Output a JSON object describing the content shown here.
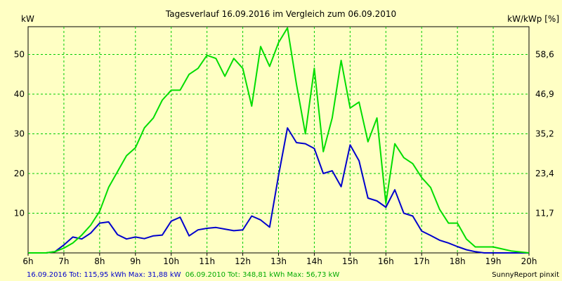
{
  "chart_data": {
    "type": "line",
    "title": "Tagesverlauf 16.09.2016 im Vergleich zum 06.09.2010",
    "ylabel_left": "kW",
    "ylabel_right": "kW/kWp [%]",
    "xlim": [
      6,
      20
    ],
    "ylim": [
      0,
      57
    ],
    "x_tick_labels": [
      "6h",
      "7h",
      "8h",
      "9h",
      "10h",
      "11h",
      "12h",
      "13h",
      "14h",
      "15h",
      "16h",
      "17h",
      "18h",
      "19h",
      "20h"
    ],
    "y_tick_labels_left": [
      "10",
      "20",
      "30",
      "40",
      "50"
    ],
    "y_tick_labels_right": [
      "11,7",
      "23,4",
      "35,2",
      "46,9",
      "58,6"
    ],
    "grid": true,
    "series": [
      {
        "name": "16.09.2016",
        "color": "#0000cc",
        "x": [
          6.0,
          6.5,
          6.75,
          7.0,
          7.25,
          7.5,
          7.75,
          8.0,
          8.25,
          8.5,
          8.75,
          9.0,
          9.25,
          9.5,
          9.75,
          10.0,
          10.25,
          10.5,
          10.75,
          11.0,
          11.25,
          11.5,
          11.75,
          12.0,
          12.25,
          12.5,
          12.75,
          13.0,
          13.25,
          13.5,
          13.75,
          14.0,
          14.25,
          14.5,
          14.75,
          15.0,
          15.25,
          15.5,
          15.75,
          16.0,
          16.25,
          16.5,
          16.75,
          17.0,
          17.25,
          17.5,
          17.75,
          18.0,
          18.25,
          18.5,
          18.75,
          19.0,
          19.25,
          19.5,
          20.0
        ],
        "values": [
          0,
          0,
          0.3,
          2.0,
          4.0,
          3.5,
          5.0,
          7.5,
          7.8,
          4.6,
          3.5,
          4.0,
          3.6,
          4.3,
          4.5,
          8.0,
          9.0,
          4.3,
          5.8,
          6.2,
          6.4,
          6.0,
          5.6,
          5.8,
          9.3,
          8.3,
          6.5,
          19.5,
          31.5,
          27.8,
          27.5,
          26.3,
          20.0,
          20.7,
          16.7,
          27.2,
          23.2,
          13.8,
          13.1,
          11.5,
          15.9,
          10.0,
          9.3,
          5.5,
          4.4,
          3.2,
          2.5,
          1.6,
          0.8,
          0.3,
          0,
          0,
          0,
          0,
          0
        ]
      },
      {
        "name": "06.09.2010",
        "color": "#00dd00",
        "x": [
          6.0,
          6.5,
          6.75,
          7.0,
          7.25,
          7.5,
          7.75,
          8.0,
          8.25,
          8.5,
          8.75,
          9.0,
          9.25,
          9.5,
          9.75,
          10.0,
          10.25,
          10.5,
          10.75,
          11.0,
          11.25,
          11.5,
          11.75,
          12.0,
          12.25,
          12.5,
          12.75,
          13.0,
          13.25,
          13.5,
          13.75,
          14.0,
          14.25,
          14.5,
          14.75,
          15.0,
          15.25,
          15.5,
          15.75,
          16.0,
          16.25,
          16.5,
          16.75,
          17.0,
          17.25,
          17.5,
          17.75,
          18.0,
          18.25,
          18.5,
          18.75,
          19.0,
          19.25,
          19.5,
          20.0
        ],
        "values": [
          0,
          0,
          0.3,
          1.2,
          2.5,
          4.5,
          7.0,
          10.5,
          16.5,
          20.5,
          24.5,
          26.5,
          31.5,
          34.0,
          38.5,
          41.0,
          41.0,
          45.0,
          46.5,
          49.8,
          49.0,
          44.5,
          49.0,
          46.5,
          37.0,
          52.0,
          47.0,
          53.0,
          56.7,
          42.5,
          30.0,
          46.5,
          25.5,
          34.0,
          48.5,
          36.5,
          38.0,
          28.0,
          34.0,
          12.5,
          27.5,
          24.0,
          22.5,
          19.0,
          16.5,
          11.0,
          7.5,
          7.5,
          3.5,
          1.5,
          1.5,
          1.5,
          1.0,
          0.5,
          0
        ]
      }
    ]
  },
  "footer": {
    "blue_text": "16.09.2016 Tot: 115,95 kWh Max: 31,88 kW",
    "green_text": "06.09.2010 Tot: 348,81 kWh Max: 56,73 kW",
    "credit": "SunnyReport pinxit"
  }
}
